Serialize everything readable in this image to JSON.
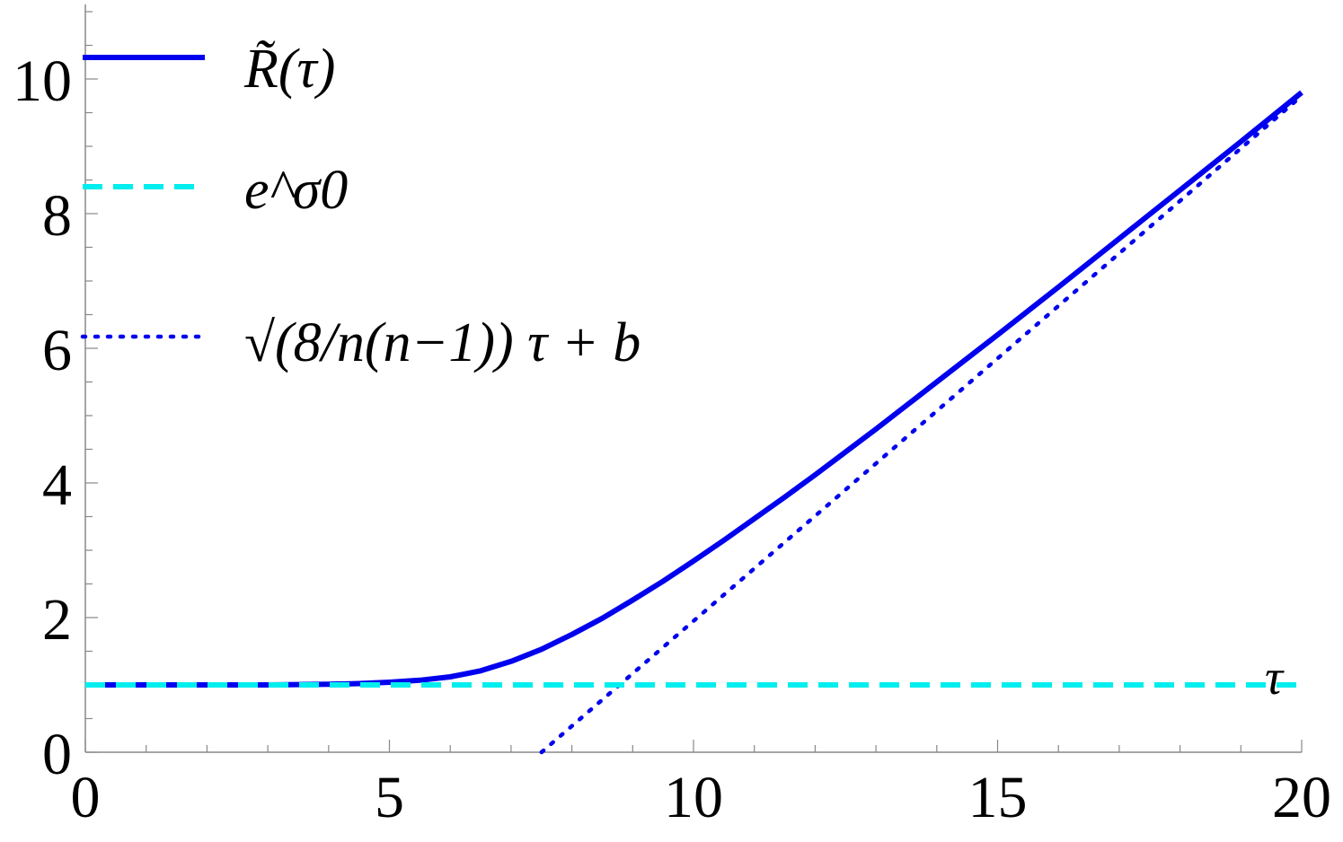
{
  "chart_data": {
    "type": "line",
    "title": "",
    "xlabel": "τ",
    "ylabel": "",
    "xlim": [
      0,
      20
    ],
    "ylim": [
      0,
      11
    ],
    "grid": false,
    "legend_position": "top-left",
    "x_ticks": [
      0,
      5,
      10,
      15,
      20
    ],
    "x_tick_labels": [
      "0",
      "5",
      "10",
      "15",
      "20"
    ],
    "x_minor_step": 1,
    "y_ticks": [
      0,
      2,
      4,
      6,
      8,
      10
    ],
    "y_tick_labels": [
      "0",
      "2",
      "4",
      "6",
      "8",
      "10"
    ],
    "y_minor_step": 0.5,
    "series": [
      {
        "name": "R̃(τ)",
        "style": "solid",
        "color": "#0000ee",
        "x": [
          0,
          2,
          3,
          4,
          4.5,
          5,
          5.5,
          6,
          6.5,
          7,
          7.5,
          8,
          8.5,
          9,
          9.5,
          10,
          10.5,
          11,
          11.5,
          12,
          13,
          14,
          15,
          16,
          17,
          18,
          19,
          20
        ],
        "y": [
          1.0,
          1.0,
          1.0,
          1.01,
          1.02,
          1.04,
          1.07,
          1.12,
          1.21,
          1.35,
          1.53,
          1.75,
          1.99,
          2.26,
          2.54,
          2.84,
          3.15,
          3.47,
          3.79,
          4.12,
          4.8,
          5.5,
          6.2,
          6.91,
          7.63,
          8.35,
          9.07,
          9.8
        ]
      },
      {
        "name": "e^σ0",
        "style": "dashed",
        "color": "#00eeee",
        "x": [
          0,
          20
        ],
        "y": [
          1.0,
          1.0
        ]
      },
      {
        "name": "√(8/n(n−1)) τ + b",
        "style": "dotted",
        "color": "#0000ee",
        "x": [
          7.5,
          20
        ],
        "y": [
          0.0,
          9.75
        ]
      }
    ]
  }
}
